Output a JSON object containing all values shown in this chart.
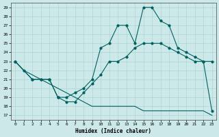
{
  "xlabel": "Humidex (Indice chaleur)",
  "xlim": [
    -0.5,
    23.5
  ],
  "ylim": [
    16.5,
    29.5
  ],
  "yticks": [
    17,
    18,
    19,
    20,
    21,
    22,
    23,
    24,
    25,
    26,
    27,
    28,
    29
  ],
  "xticks": [
    0,
    1,
    2,
    3,
    4,
    5,
    6,
    7,
    8,
    9,
    10,
    11,
    12,
    13,
    14,
    15,
    16,
    17,
    18,
    19,
    20,
    21,
    22,
    23
  ],
  "bg_color": "#cde8e8",
  "grid_color": "#aad4d4",
  "line_color": "#006060",
  "line1_x": [
    0,
    1,
    2,
    3,
    4,
    5,
    6,
    7,
    8,
    9,
    10,
    11,
    12,
    13,
    14,
    15,
    16,
    17,
    18,
    19,
    20,
    21,
    22,
    23
  ],
  "line1_y": [
    23,
    22,
    21,
    21,
    21,
    19,
    19,
    19.5,
    20,
    21,
    24.5,
    25,
    27,
    27,
    25,
    29,
    29,
    27.5,
    27,
    24.5,
    24,
    23.5,
    23,
    23
  ],
  "line2_x": [
    0,
    1,
    2,
    3,
    4,
    5,
    6,
    7,
    8,
    9,
    10,
    11,
    12,
    13,
    14,
    15,
    16,
    17,
    18,
    19,
    20,
    21,
    22,
    23
  ],
  "line2_y": [
    23,
    22,
    21.5,
    21,
    20.5,
    20,
    19.5,
    19,
    18.5,
    18,
    18,
    18,
    18,
    18,
    18,
    17.5,
    17.5,
    17.5,
    17.5,
    17.5,
    17.5,
    17.5,
    17.5,
    17
  ],
  "line3_x": [
    0,
    2,
    3,
    4,
    5,
    6,
    7,
    8,
    9,
    10,
    11,
    12,
    13,
    14,
    15,
    16,
    17,
    18,
    19,
    20,
    21,
    22,
    23
  ],
  "line3_y": [
    23,
    21,
    21,
    21,
    19,
    18.5,
    18.5,
    19.5,
    20.5,
    21.5,
    23,
    23,
    23.5,
    24.5,
    25,
    25,
    25,
    24.5,
    24,
    23.5,
    23,
    23,
    17.5
  ]
}
